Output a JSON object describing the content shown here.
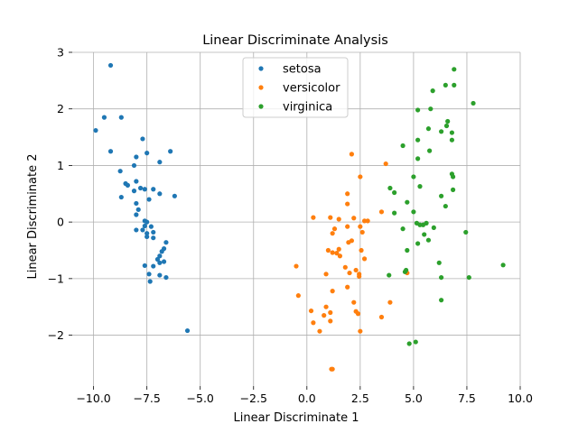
{
  "chart_data": {
    "type": "scatter",
    "title": "Linear Discriminate Analysis",
    "xlabel": "Linear Discriminate 1",
    "ylabel": "Linear Discriminate 2",
    "xlim": [
      -11.0,
      10.0
    ],
    "ylim": [
      -2.9,
      3.0
    ],
    "xticks": [
      -10.0,
      -7.5,
      -5.0,
      -2.5,
      0.0,
      2.5,
      5.0,
      7.5,
      10.0
    ],
    "xtick_labels": [
      "−10.0",
      "−7.5",
      "−5.0",
      "−2.5",
      "0.0",
      "2.5",
      "5.0",
      "7.5",
      "10.0"
    ],
    "yticks": [
      -2,
      -1,
      0,
      1,
      2,
      3
    ],
    "ytick_labels": [
      "−2",
      "−1",
      "0",
      "1",
      "2",
      "3"
    ],
    "grid": true,
    "legend_position": "top-center",
    "series": [
      {
        "name": "setosa",
        "color": "#1f77b4",
        "points": [
          [
            -9.2,
            2.77
          ],
          [
            -9.5,
            1.85
          ],
          [
            -8.7,
            1.85
          ],
          [
            -9.9,
            1.62
          ],
          [
            -9.2,
            1.25
          ],
          [
            -7.7,
            1.47
          ],
          [
            -6.4,
            1.25
          ],
          [
            -7.5,
            1.22
          ],
          [
            -8.0,
            1.15
          ],
          [
            -6.9,
            1.06
          ],
          [
            -8.1,
            1.0
          ],
          [
            -8.75,
            0.9
          ],
          [
            -8.5,
            0.68
          ],
          [
            -8.4,
            0.65
          ],
          [
            -8.0,
            0.72
          ],
          [
            -7.8,
            0.6
          ],
          [
            -8.1,
            0.55
          ],
          [
            -7.6,
            0.58
          ],
          [
            -7.2,
            0.58
          ],
          [
            -6.9,
            0.5
          ],
          [
            -8.7,
            0.44
          ],
          [
            -6.2,
            0.46
          ],
          [
            -7.4,
            0.4
          ],
          [
            -8.0,
            0.33
          ],
          [
            -7.9,
            0.22
          ],
          [
            -8.0,
            0.13
          ],
          [
            -7.6,
            0.02
          ],
          [
            -7.5,
            0.0
          ],
          [
            -7.6,
            -0.07
          ],
          [
            -8.0,
            -0.14
          ],
          [
            -7.7,
            -0.14
          ],
          [
            -7.3,
            -0.08
          ],
          [
            -7.5,
            -0.2
          ],
          [
            -7.5,
            -0.26
          ],
          [
            -7.2,
            -0.28
          ],
          [
            -7.2,
            -0.18
          ],
          [
            -6.6,
            -0.36
          ],
          [
            -6.7,
            -0.47
          ],
          [
            -6.8,
            -0.52
          ],
          [
            -6.9,
            -0.6
          ],
          [
            -7.0,
            -0.66
          ],
          [
            -6.9,
            -0.72
          ],
          [
            -6.7,
            -0.7
          ],
          [
            -7.6,
            -0.77
          ],
          [
            -7.2,
            -0.78
          ],
          [
            -7.4,
            -0.92
          ],
          [
            -6.9,
            -0.94
          ],
          [
            -6.6,
            -0.98
          ],
          [
            -7.35,
            -1.05
          ],
          [
            -5.6,
            -1.92
          ]
        ]
      },
      {
        "name": "versicolor",
        "color": "#ff7f0e",
        "points": [
          [
            2.1,
            1.2
          ],
          [
            3.7,
            1.03
          ],
          [
            2.5,
            0.8
          ],
          [
            1.9,
            0.5
          ],
          [
            1.9,
            0.32
          ],
          [
            3.5,
            0.18
          ],
          [
            0.3,
            0.08
          ],
          [
            1.1,
            0.08
          ],
          [
            1.5,
            0.05
          ],
          [
            2.2,
            0.07
          ],
          [
            2.7,
            0.02
          ],
          [
            2.85,
            0.02
          ],
          [
            1.9,
            -0.08
          ],
          [
            2.5,
            -0.08
          ],
          [
            1.3,
            -0.12
          ],
          [
            2.6,
            -0.18
          ],
          [
            1.2,
            -0.2
          ],
          [
            2.1,
            -0.33
          ],
          [
            1.95,
            -0.36
          ],
          [
            1.0,
            -0.5
          ],
          [
            1.5,
            -0.48
          ],
          [
            2.55,
            -0.5
          ],
          [
            1.2,
            -0.54
          ],
          [
            1.4,
            -0.55
          ],
          [
            1.55,
            -0.6
          ],
          [
            2.7,
            -0.65
          ],
          [
            -0.5,
            -0.78
          ],
          [
            1.8,
            -0.8
          ],
          [
            2.3,
            -0.85
          ],
          [
            2.0,
            -0.9
          ],
          [
            0.9,
            -0.92
          ],
          [
            2.45,
            -0.92
          ],
          [
            4.7,
            -0.9
          ],
          [
            2.45,
            -0.96
          ],
          [
            1.9,
            -1.15
          ],
          [
            1.2,
            -1.22
          ],
          [
            -0.4,
            -1.3
          ],
          [
            3.9,
            -1.42
          ],
          [
            2.2,
            -1.42
          ],
          [
            0.9,
            -1.5
          ],
          [
            0.2,
            -1.57
          ],
          [
            2.3,
            -1.58
          ],
          [
            1.1,
            -1.6
          ],
          [
            2.4,
            -1.62
          ],
          [
            0.8,
            -1.65
          ],
          [
            3.5,
            -1.68
          ],
          [
            1.1,
            -1.75
          ],
          [
            0.3,
            -1.78
          ],
          [
            0.6,
            -1.93
          ],
          [
            2.5,
            -1.93
          ],
          [
            1.2,
            -2.6
          ],
          [
            1.15,
            -2.6
          ]
        ]
      },
      {
        "name": "virginica",
        "color": "#2ca02c",
        "points": [
          [
            6.9,
            2.7
          ],
          [
            6.5,
            2.42
          ],
          [
            6.9,
            2.42
          ],
          [
            5.9,
            2.32
          ],
          [
            7.8,
            2.1
          ],
          [
            5.2,
            1.98
          ],
          [
            5.8,
            2.0
          ],
          [
            6.6,
            1.78
          ],
          [
            6.55,
            1.7
          ],
          [
            5.7,
            1.65
          ],
          [
            6.3,
            1.6
          ],
          [
            6.8,
            1.58
          ],
          [
            6.8,
            1.45
          ],
          [
            5.2,
            1.45
          ],
          [
            4.5,
            1.35
          ],
          [
            5.75,
            1.26
          ],
          [
            5.2,
            1.12
          ],
          [
            6.8,
            0.85
          ],
          [
            6.85,
            0.8
          ],
          [
            5.0,
            0.8
          ],
          [
            3.9,
            0.6
          ],
          [
            4.1,
            0.52
          ],
          [
            5.3,
            0.63
          ],
          [
            6.85,
            0.57
          ],
          [
            6.3,
            0.46
          ],
          [
            4.7,
            0.35
          ],
          [
            6.5,
            0.28
          ],
          [
            5.0,
            0.18
          ],
          [
            4.1,
            0.16
          ],
          [
            5.15,
            -0.02
          ],
          [
            5.3,
            -0.05
          ],
          [
            5.6,
            -0.02
          ],
          [
            5.45,
            -0.05
          ],
          [
            5.95,
            -0.1
          ],
          [
            4.5,
            -0.12
          ],
          [
            7.45,
            -0.18
          ],
          [
            5.5,
            -0.22
          ],
          [
            5.7,
            -0.32
          ],
          [
            5.2,
            -0.38
          ],
          [
            4.7,
            -0.5
          ],
          [
            6.2,
            -0.72
          ],
          [
            9.2,
            -0.76
          ],
          [
            4.65,
            -0.85
          ],
          [
            4.6,
            -0.88
          ],
          [
            3.85,
            -0.94
          ],
          [
            7.6,
            -0.98
          ],
          [
            6.3,
            -0.98
          ],
          [
            6.3,
            -1.38
          ],
          [
            5.1,
            -2.12
          ],
          [
            4.8,
            -2.15
          ]
        ]
      }
    ]
  }
}
